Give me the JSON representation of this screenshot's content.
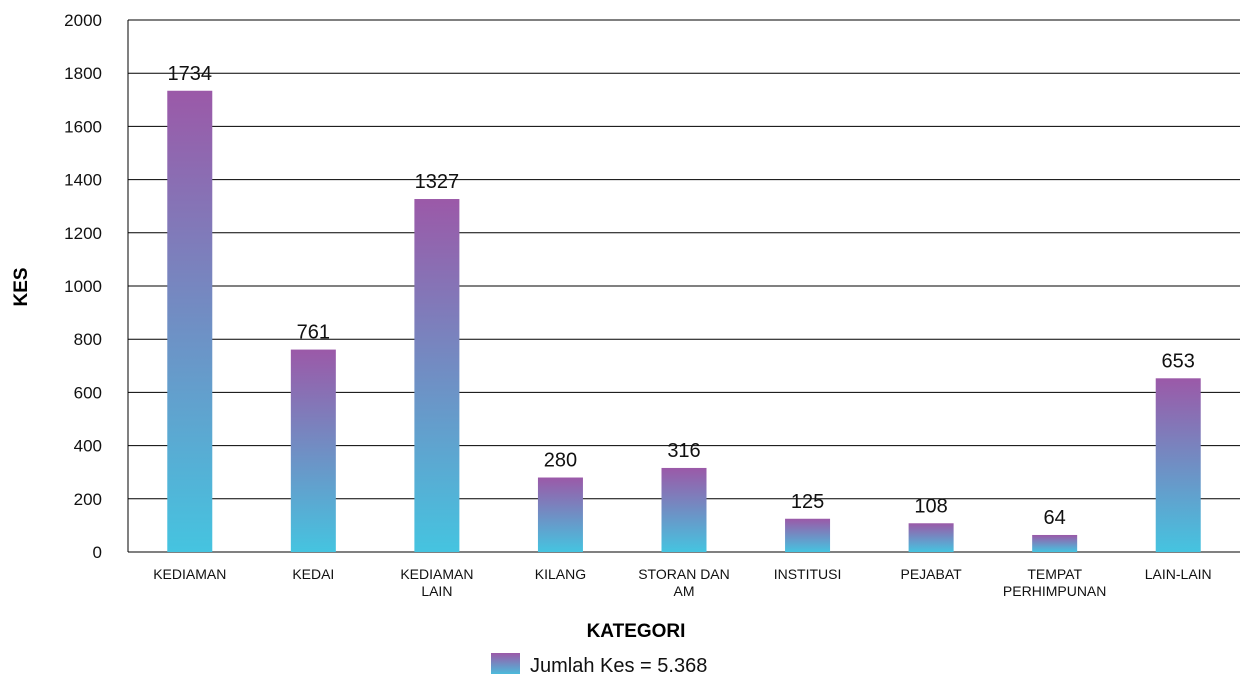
{
  "chart_data": {
    "type": "bar",
    "categories": [
      [
        "KEDIAMAN"
      ],
      [
        "KEDAI"
      ],
      [
        "KEDIAMAN",
        "LAIN"
      ],
      [
        "KILANG"
      ],
      [
        "STORAN DAN",
        "AM"
      ],
      [
        "INSTITUSI"
      ],
      [
        "PEJABAT"
      ],
      [
        "TEMPAT",
        "PERHIMPUNAN"
      ],
      [
        "LAIN-LAIN"
      ]
    ],
    "values": [
      1734,
      761,
      1327,
      280,
      316,
      125,
      108,
      64,
      653
    ],
    "data_labels": [
      "1734",
      "761",
      "1327",
      "280",
      "316",
      "125",
      "108",
      "64",
      "653"
    ],
    "xlabel": "KATEGORI",
    "ylabel": "KES",
    "ylim": [
      0,
      2000
    ],
    "yticks": [
      0,
      200,
      400,
      600,
      800,
      1000,
      1200,
      1400,
      1600,
      1800,
      2000
    ],
    "grid": true,
    "legend": {
      "position": "bottom-center",
      "label": "Jumlah Kes = 5.368"
    },
    "colors": {
      "bar_top": "#9b59a8",
      "bar_bottom": "#45c4e0",
      "grid": "#000000"
    }
  }
}
